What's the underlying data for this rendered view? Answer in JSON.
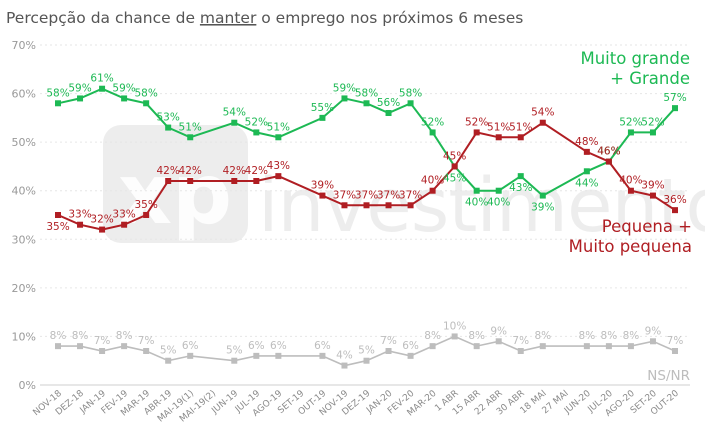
{
  "chart_data": {
    "type": "line",
    "title_parts": [
      {
        "text": "Percepção da chance de ",
        "underline": false
      },
      {
        "text": "manter",
        "underline": true
      },
      {
        "text": " o emprego nos próximos 6 meses",
        "underline": false
      }
    ],
    "watermark": "xp investimentos",
    "ylim": [
      0,
      70
    ],
    "y_ticks": [
      0,
      10,
      20,
      30,
      40,
      50,
      60,
      70
    ],
    "y_tick_labels": [
      "0%",
      "10%",
      "20%",
      "30%",
      "40%",
      "50%",
      "60%",
      "70%"
    ],
    "grid": true,
    "x_labels": [
      "NOV-18",
      "DEZ-18",
      "JAN-19",
      "FEV-19",
      "MAR-19",
      "ABR-19",
      "MAI-19(1)",
      "MAI-19(2)",
      "JUN-19",
      "JUL-19",
      "AGO-19",
      "SET-19",
      "OUT-19",
      "NOV-19",
      "DEZ-19",
      "JAN-20",
      "FEV-20",
      "MAR-20",
      "1 ABR",
      "15 ABR",
      "22 ABR",
      "30 ABR",
      "18 MAI",
      "27 MAI",
      "JUN-20",
      "JUL-20",
      "AGO-20",
      "SET-20",
      "OUT-20"
    ],
    "series": [
      {
        "name": "Muito grande + Grande",
        "label_lines": [
          "Muito grande",
          "+ Grande"
        ],
        "color": "#1db954",
        "points": [
          {
            "x": "NOV-18",
            "y": 58
          },
          {
            "x": "DEZ-18",
            "y": 59
          },
          {
            "x": "JAN-19",
            "y": 61
          },
          {
            "x": "FEV-19",
            "y": 59
          },
          {
            "x": "MAR-19",
            "y": 58
          },
          {
            "x": "ABR-19",
            "y": 53
          },
          {
            "x": "MAI-19(1)",
            "y": 51
          },
          {
            "x": "JUN-19",
            "y": 54
          },
          {
            "x": "JUL-19",
            "y": 52
          },
          {
            "x": "AGO-19",
            "y": 51
          },
          {
            "x": "OUT-19",
            "y": 55
          },
          {
            "x": "NOV-19",
            "y": 59
          },
          {
            "x": "DEZ-19",
            "y": 58
          },
          {
            "x": "JAN-20",
            "y": 56
          },
          {
            "x": "FEV-20",
            "y": 58
          },
          {
            "x": "MAR-20",
            "y": 52
          },
          {
            "x": "1 ABR",
            "y": 45
          },
          {
            "x": "15 ABR",
            "y": 40
          },
          {
            "x": "22 ABR",
            "y": 40
          },
          {
            "x": "30 ABR",
            "y": 43
          },
          {
            "x": "18 MAI",
            "y": 39
          },
          {
            "x": "JUN-20",
            "y": 44
          },
          {
            "x": "JUL-20",
            "y": 46
          },
          {
            "x": "AGO-20",
            "y": 52
          },
          {
            "x": "SET-20",
            "y": 52
          },
          {
            "x": "OUT-20",
            "y": 57
          }
        ]
      },
      {
        "name": "Pequena + Muito pequena",
        "label_lines": [
          "Pequena +",
          "Muito pequena"
        ],
        "color": "#b01e23",
        "points": [
          {
            "x": "NOV-18",
            "y": 35
          },
          {
            "x": "DEZ-18",
            "y": 33
          },
          {
            "x": "JAN-19",
            "y": 32
          },
          {
            "x": "FEV-19",
            "y": 33
          },
          {
            "x": "MAR-19",
            "y": 35
          },
          {
            "x": "ABR-19",
            "y": 42
          },
          {
            "x": "MAI-19(1)",
            "y": 42
          },
          {
            "x": "JUN-19",
            "y": 42
          },
          {
            "x": "JUL-19",
            "y": 42
          },
          {
            "x": "AGO-19",
            "y": 43
          },
          {
            "x": "OUT-19",
            "y": 39
          },
          {
            "x": "NOV-19",
            "y": 37
          },
          {
            "x": "DEZ-19",
            "y": 37
          },
          {
            "x": "JAN-20",
            "y": 37
          },
          {
            "x": "FEV-20",
            "y": 37
          },
          {
            "x": "MAR-20",
            "y": 40
          },
          {
            "x": "1 ABR",
            "y": 45
          },
          {
            "x": "15 ABR",
            "y": 52
          },
          {
            "x": "22 ABR",
            "y": 51
          },
          {
            "x": "30 ABR",
            "y": 51
          },
          {
            "x": "18 MAI",
            "y": 54
          },
          {
            "x": "JUN-20",
            "y": 48
          },
          {
            "x": "JUL-20",
            "y": 46
          },
          {
            "x": "AGO-20",
            "y": 40
          },
          {
            "x": "SET-20",
            "y": 39
          },
          {
            "x": "OUT-20",
            "y": 36
          }
        ]
      },
      {
        "name": "NS/NR",
        "label_lines": [
          "NS/NR"
        ],
        "color": "#bdbdbd",
        "points": [
          {
            "x": "NOV-18",
            "y": 8
          },
          {
            "x": "DEZ-18",
            "y": 8
          },
          {
            "x": "JAN-19",
            "y": 7
          },
          {
            "x": "FEV-19",
            "y": 8
          },
          {
            "x": "MAR-19",
            "y": 7
          },
          {
            "x": "ABR-19",
            "y": 5
          },
          {
            "x": "MAI-19(1)",
            "y": 6
          },
          {
            "x": "JUN-19",
            "y": 5
          },
          {
            "x": "JUL-19",
            "y": 6
          },
          {
            "x": "AGO-19",
            "y": 6
          },
          {
            "x": "OUT-19",
            "y": 6
          },
          {
            "x": "NOV-19",
            "y": 4
          },
          {
            "x": "DEZ-19",
            "y": 5
          },
          {
            "x": "JAN-20",
            "y": 7
          },
          {
            "x": "FEV-20",
            "y": 6
          },
          {
            "x": "MAR-20",
            "y": 8
          },
          {
            "x": "1 ABR",
            "y": 10
          },
          {
            "x": "15 ABR",
            "y": 8
          },
          {
            "x": "22 ABR",
            "y": 9
          },
          {
            "x": "30 ABR",
            "y": 7
          },
          {
            "x": "18 MAI",
            "y": 8
          },
          {
            "x": "JUN-20",
            "y": 8
          },
          {
            "x": "JUL-20",
            "y": 8
          },
          {
            "x": "AGO-20",
            "y": 8
          },
          {
            "x": "SET-20",
            "y": 9
          },
          {
            "x": "OUT-20",
            "y": 7
          }
        ]
      }
    ]
  }
}
